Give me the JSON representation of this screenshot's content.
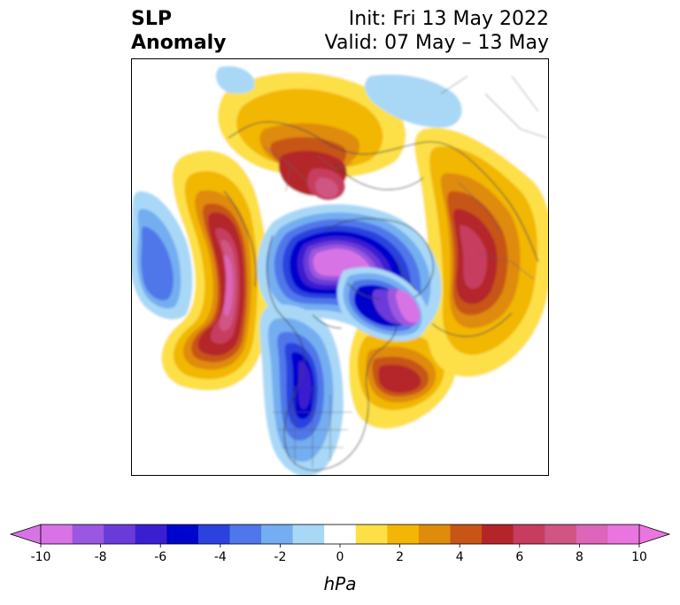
{
  "title": {
    "left_line1": "SLP",
    "left_line2": "Anomaly",
    "right_line1": "Init: Fri 13 May 2022",
    "right_line2": "Valid: 07 May – 13 May"
  },
  "colorbar": {
    "unit": "hPa",
    "ticks": [
      "-10",
      "-8",
      "-6",
      "-4",
      "-2",
      "0",
      "2",
      "4",
      "6",
      "8",
      "10"
    ],
    "colors": [
      "#d873e6",
      "#9b57df",
      "#6a3bd8",
      "#3a1fd1",
      "#0005cc",
      "#2b42de",
      "#4f77ea",
      "#75aef0",
      "#a9d8f7",
      "#ffffff",
      "#fde047",
      "#f2b705",
      "#df8b0c",
      "#c75515",
      "#b4252a",
      "#c63d5f",
      "#cf5583",
      "#dc66b7",
      "#e976de"
    ],
    "extend_low_color": "#d873e6",
    "extend_high_color": "#e976de"
  },
  "map": {
    "region": "Northern Hemisphere polar stereographic",
    "variable": "Sea level pressure anomaly"
  }
}
